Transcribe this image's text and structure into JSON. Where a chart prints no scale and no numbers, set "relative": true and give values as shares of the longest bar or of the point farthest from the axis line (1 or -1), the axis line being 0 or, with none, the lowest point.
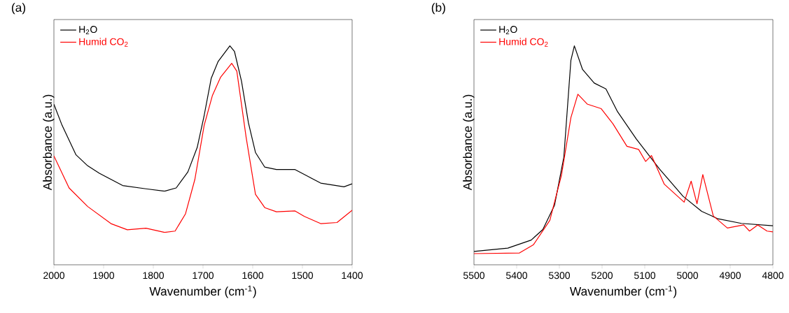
{
  "chart_data": [
    {
      "type": "line",
      "title": "(a)",
      "xlabel": "Wavenumber (cm$^{-1}$)",
      "ylabel": "Absorbance (a.u.)",
      "relative": true,
      "legend": "top left",
      "xlim": [
        2000,
        1400
      ],
      "xticks": [
        2000,
        1900,
        1800,
        1700,
        1600,
        1500,
        1400
      ],
      "series": [
        {
          "name": "H$_{2}$O",
          "color": "#000000",
          "x": [
            2000,
            1983.6,
            1955.5,
            1932,
            1908.6,
            1861.7,
            1814.8,
            1777.3,
            1754,
            1730.5,
            1711.7,
            1697.7,
            1683.6,
            1669.5,
            1646,
            1636.7,
            1622.6,
            1608.6,
            1594.5,
            1575.8,
            1552.3,
            1514.8,
            1486.7,
            1463.3,
            1416.4,
            1400
          ],
          "values": [
            0.733,
            0.637,
            0.502,
            0.452,
            0.418,
            0.362,
            0.347,
            0.336,
            0.351,
            0.424,
            0.536,
            0.682,
            0.851,
            0.929,
            1.0,
            0.974,
            0.839,
            0.648,
            0.513,
            0.446,
            0.435,
            0.435,
            0.401,
            0.373,
            0.356,
            0.37
          ]
        },
        {
          "name": "Humid CO$_{2}$",
          "color": "#ff0000",
          "x": [
            2000,
            1969.5,
            1932,
            1885.2,
            1852.3,
            1814.8,
            1777.3,
            1756.2,
            1735.2,
            1716.4,
            1697.7,
            1681.3,
            1664.8,
            1642.3,
            1632,
            1613.2,
            1594.5,
            1575.8,
            1552.3,
            1514.8,
            1496.1,
            1463.3,
            1430.5,
            1400
          ],
          "values": [
            0.497,
            0.351,
            0.266,
            0.188,
            0.16,
            0.167,
            0.148,
            0.154,
            0.233,
            0.39,
            0.637,
            0.772,
            0.856,
            0.92,
            0.884,
            0.581,
            0.322,
            0.261,
            0.242,
            0.246,
            0.221,
            0.188,
            0.193,
            0.249
          ]
        }
      ]
    },
    {
      "type": "line",
      "title": "(b)",
      "xlabel": "Wavenumber (cm$^{-1}$)",
      "ylabel": "Absorbance (a.u.)",
      "relative": true,
      "legend": "top left",
      "xlim": [
        5500,
        4800
      ],
      "xticks": [
        5500,
        5400,
        5300,
        5200,
        5100,
        5000,
        4900,
        4800
      ],
      "series": [
        {
          "name": "H$_{2}$O",
          "color": "#000000",
          "x": [
            5500,
            5420.7,
            5366,
            5338.7,
            5311.3,
            5289.5,
            5273,
            5264.9,
            5245.7,
            5218.4,
            5191,
            5163.7,
            5119.9,
            5065.2,
            5010.5,
            4966.8,
            4928.5,
            4873.8,
            4800
          ],
          "values": [
            0.061,
            0.076,
            0.113,
            0.161,
            0.272,
            0.492,
            0.934,
            1.0,
            0.892,
            0.83,
            0.803,
            0.699,
            0.575,
            0.437,
            0.313,
            0.244,
            0.21,
            0.189,
            0.178
          ]
        },
        {
          "name": "Humid CO$_{2}$",
          "color": "#ff0000",
          "x": [
            5500,
            5393.4,
            5360.6,
            5322.3,
            5295,
            5273,
            5256.7,
            5234.8,
            5202,
            5174.6,
            5141.8,
            5114.5,
            5098.1,
            5084.4,
            5054.3,
            5007.8,
            4991.4,
            4977.7,
            4964.1,
            4939.5,
            4906.6,
            4868.4,
            4854.7,
            4835.5,
            4813.7,
            4800
          ],
          "values": [
            0.051,
            0.054,
            0.092,
            0.203,
            0.41,
            0.672,
            0.779,
            0.734,
            0.713,
            0.644,
            0.541,
            0.527,
            0.472,
            0.499,
            0.368,
            0.286,
            0.382,
            0.279,
            0.412,
            0.223,
            0.168,
            0.182,
            0.154,
            0.182,
            0.154,
            0.15
          ]
        }
      ]
    }
  ]
}
